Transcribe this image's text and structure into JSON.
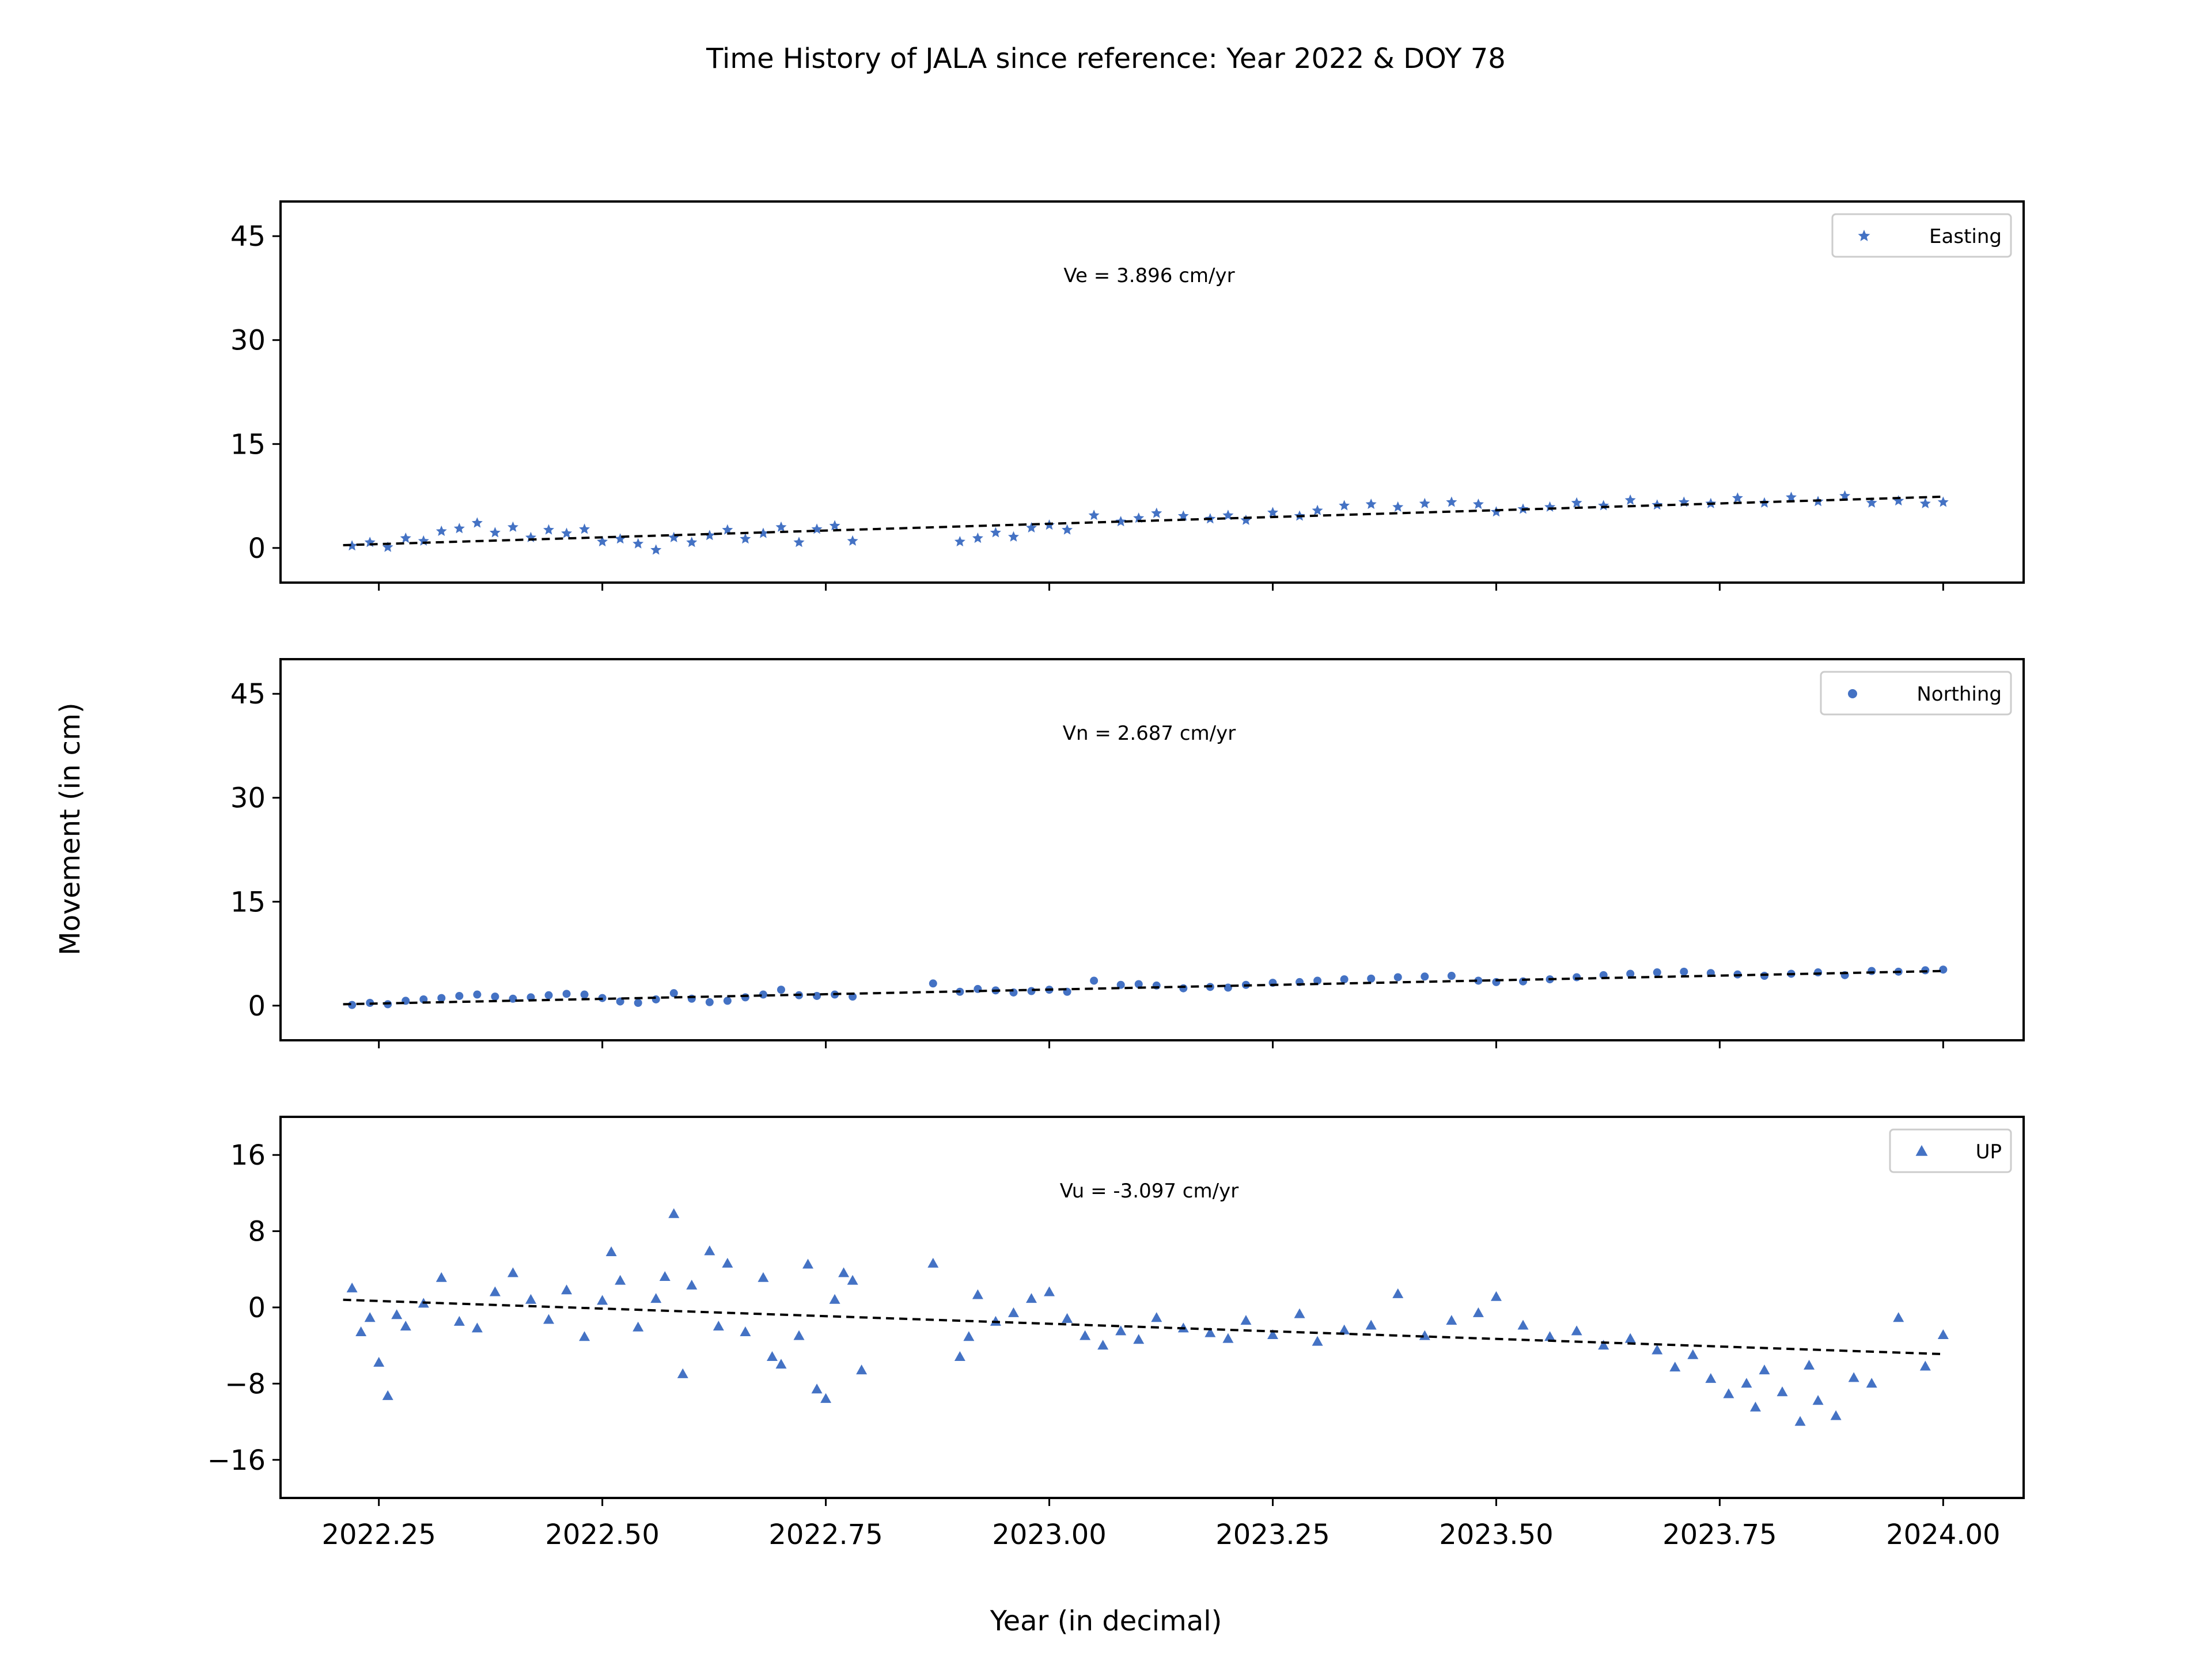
{
  "figure": {
    "title": "Time History of JALA since reference: Year 2022 & DOY 78",
    "ylabel": "Movement (in cm)",
    "xlabel": "Year (in decimal)",
    "marker_color": "#4472c4",
    "trend_color": "#000000",
    "x_ticks": [
      "2022.25",
      "2022.50",
      "2022.75",
      "2023.00",
      "2023.25",
      "2023.50",
      "2023.75",
      "2024.00"
    ]
  },
  "chart_data": [
    {
      "type": "scatter",
      "panel": "top",
      "legend": "Easting",
      "marker": "star",
      "legend_position": "top-right",
      "annotation": "Ve =  3.896 cm/yr",
      "xlim": [
        2022.14,
        2024.09
      ],
      "ylim": [
        -5,
        50
      ],
      "y_ticks": [
        "0",
        "15",
        "30",
        "45"
      ],
      "trend": {
        "x": [
          2022.21,
          2024.0
        ],
        "y": [
          0.4,
          7.4
        ]
      },
      "series": [
        {
          "name": "Easting",
          "x": [
            2022.22,
            2022.24,
            2022.26,
            2022.28,
            2022.3,
            2022.32,
            2022.34,
            2022.36,
            2022.38,
            2022.4,
            2022.42,
            2022.44,
            2022.46,
            2022.48,
            2022.5,
            2022.52,
            2022.54,
            2022.56,
            2022.58,
            2022.6,
            2022.62,
            2022.64,
            2022.66,
            2022.68,
            2022.7,
            2022.72,
            2022.74,
            2022.76,
            2022.78,
            2022.9,
            2022.92,
            2022.94,
            2022.96,
            2022.98,
            2023.0,
            2023.02,
            2023.05,
            2023.08,
            2023.1,
            2023.12,
            2023.15,
            2023.18,
            2023.2,
            2023.22,
            2023.25,
            2023.28,
            2023.3,
            2023.33,
            2023.36,
            2023.39,
            2023.42,
            2023.45,
            2023.48,
            2023.5,
            2023.53,
            2023.56,
            2023.59,
            2023.62,
            2023.65,
            2023.68,
            2023.71,
            2023.74,
            2023.77,
            2023.8,
            2023.83,
            2023.86,
            2023.89,
            2023.92,
            2023.95,
            2023.98,
            2024.0
          ],
          "y": [
            0.3,
            0.8,
            0.1,
            1.4,
            1.0,
            2.4,
            2.8,
            3.6,
            2.2,
            3.0,
            1.5,
            2.6,
            2.1,
            2.7,
            0.9,
            1.3,
            0.6,
            -0.3,
            1.5,
            0.8,
            1.8,
            2.6,
            1.3,
            2.1,
            3.0,
            0.8,
            2.7,
            3.2,
            1.0,
            0.9,
            1.4,
            2.2,
            1.6,
            2.9,
            3.3,
            2.6,
            4.7,
            3.8,
            4.3,
            5.0,
            4.6,
            4.2,
            4.7,
            4.0,
            5.1,
            4.6,
            5.4,
            6.1,
            6.3,
            5.9,
            6.4,
            6.6,
            6.3,
            5.2,
            5.6,
            5.9,
            6.5,
            6.1,
            6.9,
            6.2,
            6.6,
            6.4,
            7.2,
            6.5,
            7.3,
            6.7,
            7.5,
            6.5,
            6.8,
            6.4,
            6.6
          ]
        }
      ]
    },
    {
      "type": "scatter",
      "panel": "middle",
      "legend": "Northing",
      "marker": "circle",
      "legend_position": "top-right",
      "annotation": "Vn =  2.687 cm/yr",
      "xlim": [
        2022.14,
        2024.09
      ],
      "ylim": [
        -5,
        50
      ],
      "y_ticks": [
        "0",
        "15",
        "30",
        "45"
      ],
      "trend": {
        "x": [
          2022.21,
          2024.0
        ],
        "y": [
          0.2,
          5.0
        ]
      },
      "series": [
        {
          "name": "Northing",
          "x": [
            2022.22,
            2022.24,
            2022.26,
            2022.28,
            2022.3,
            2022.32,
            2022.34,
            2022.36,
            2022.38,
            2022.4,
            2022.42,
            2022.44,
            2022.46,
            2022.48,
            2022.5,
            2022.52,
            2022.54,
            2022.56,
            2022.58,
            2022.6,
            2022.62,
            2022.64,
            2022.66,
            2022.68,
            2022.7,
            2022.72,
            2022.74,
            2022.76,
            2022.78,
            2022.87,
            2022.9,
            2022.92,
            2022.94,
            2022.96,
            2022.98,
            2023.0,
            2023.02,
            2023.05,
            2023.08,
            2023.1,
            2023.12,
            2023.15,
            2023.18,
            2023.2,
            2023.22,
            2023.25,
            2023.28,
            2023.3,
            2023.33,
            2023.36,
            2023.39,
            2023.42,
            2023.45,
            2023.48,
            2023.5,
            2023.53,
            2023.56,
            2023.59,
            2023.62,
            2023.65,
            2023.68,
            2023.71,
            2023.74,
            2023.77,
            2023.8,
            2023.83,
            2023.86,
            2023.89,
            2023.92,
            2023.95,
            2023.98,
            2024.0
          ],
          "y": [
            0.1,
            0.4,
            0.2,
            0.7,
            0.9,
            1.1,
            1.4,
            1.6,
            1.3,
            1.0,
            1.2,
            1.5,
            1.7,
            1.6,
            1.1,
            0.6,
            0.4,
            0.9,
            1.8,
            1.0,
            0.5,
            0.7,
            1.2,
            1.6,
            2.3,
            1.5,
            1.4,
            1.6,
            1.3,
            3.2,
            2.0,
            2.4,
            2.2,
            1.9,
            2.1,
            2.3,
            2.0,
            3.6,
            3.0,
            3.1,
            2.9,
            2.5,
            2.7,
            2.6,
            3.0,
            3.3,
            3.4,
            3.6,
            3.8,
            3.9,
            4.1,
            4.2,
            4.3,
            3.6,
            3.4,
            3.5,
            3.8,
            4.1,
            4.4,
            4.6,
            4.8,
            4.9,
            4.7,
            4.5,
            4.3,
            4.6,
            4.8,
            4.4,
            5.0,
            4.9,
            5.1,
            5.2
          ]
        }
      ]
    },
    {
      "type": "scatter",
      "panel": "bottom",
      "legend": "UP",
      "marker": "triangle",
      "legend_position": "top-right",
      "annotation": "Vu = -3.097 cm/yr",
      "xlim": [
        2022.14,
        2024.09
      ],
      "ylim": [
        -20,
        20
      ],
      "y_ticks": [
        "16",
        "8",
        "0",
        "−8",
        "−16"
      ],
      "y_tick_values": [
        16,
        8,
        0,
        -8,
        -16
      ],
      "trend": {
        "x": [
          2022.21,
          2024.0
        ],
        "y": [
          0.8,
          -4.9
        ]
      },
      "series": [
        {
          "name": "UP",
          "x": [
            2022.22,
            2022.23,
            2022.24,
            2022.25,
            2022.26,
            2022.27,
            2022.28,
            2022.3,
            2022.32,
            2022.34,
            2022.36,
            2022.38,
            2022.4,
            2022.42,
            2022.44,
            2022.46,
            2022.48,
            2022.5,
            2022.51,
            2022.52,
            2022.54,
            2022.56,
            2022.57,
            2022.58,
            2022.59,
            2022.6,
            2022.62,
            2022.63,
            2022.64,
            2022.66,
            2022.68,
            2022.69,
            2022.7,
            2022.72,
            2022.73,
            2022.74,
            2022.75,
            2022.76,
            2022.77,
            2022.78,
            2022.79,
            2022.87,
            2022.9,
            2022.91,
            2022.92,
            2022.94,
            2022.96,
            2022.98,
            2023.0,
            2023.02,
            2023.04,
            2023.06,
            2023.08,
            2023.1,
            2023.12,
            2023.15,
            2023.18,
            2023.2,
            2023.22,
            2023.25,
            2023.28,
            2023.3,
            2023.33,
            2023.36,
            2023.39,
            2023.42,
            2023.45,
            2023.48,
            2023.5,
            2023.53,
            2023.56,
            2023.59,
            2023.62,
            2023.65,
            2023.68,
            2023.7,
            2023.72,
            2023.74,
            2023.76,
            2023.78,
            2023.79,
            2023.8,
            2023.82,
            2023.84,
            2023.85,
            2023.86,
            2023.88,
            2023.9,
            2023.92,
            2023.95,
            2023.98,
            2024.0
          ],
          "y": [
            2.0,
            -2.6,
            -1.1,
            -5.8,
            -9.3,
            -0.8,
            -2.0,
            0.4,
            3.1,
            -1.5,
            -2.2,
            1.6,
            3.6,
            0.8,
            -1.3,
            1.8,
            -3.1,
            0.7,
            5.8,
            2.8,
            -2.1,
            0.9,
            3.2,
            9.8,
            -7.0,
            2.3,
            5.9,
            -2.0,
            4.6,
            -2.6,
            3.1,
            -5.2,
            -6.0,
            -3.0,
            4.5,
            -8.6,
            -9.6,
            0.8,
            3.6,
            2.8,
            -6.6,
            4.6,
            -5.2,
            -3.1,
            1.3,
            -1.5,
            -0.6,
            0.9,
            1.6,
            -1.2,
            -3.0,
            -4.0,
            -2.5,
            -3.4,
            -1.1,
            -2.2,
            -2.7,
            -3.3,
            -1.4,
            -2.9,
            -0.7,
            -3.6,
            -2.4,
            -1.9,
            1.4,
            -3.0,
            -1.4,
            -0.6,
            1.1,
            -1.9,
            -3.1,
            -2.5,
            -4.0,
            -3.3,
            -4.5,
            -6.3,
            -5.0,
            -7.5,
            -9.1,
            -8.0,
            -10.5,
            -6.6,
            -8.9,
            -12.0,
            -6.1,
            -9.8,
            -11.4,
            -7.4,
            -8.0,
            -1.1,
            -6.2,
            -2.9
          ]
        }
      ]
    }
  ]
}
